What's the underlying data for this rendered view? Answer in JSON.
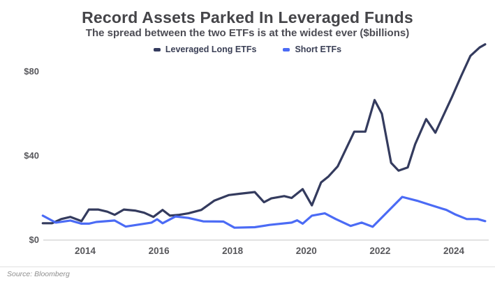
{
  "header": {
    "title": "Record Assets Parked In Leveraged Funds",
    "subtitle": "The spread between the two ETFs is at the widest ever ($billions)"
  },
  "legend": [
    {
      "label": "Leveraged Long ETFs",
      "color": "#343b5e"
    },
    {
      "label": "Short ETFs",
      "color": "#4b6bf5"
    }
  ],
  "footer": {
    "source": "Source: Bloomberg"
  },
  "colors": {
    "leveraged_long_line": "#343b5e",
    "short_etfs_line": "#4b6bf5",
    "baseline": "#d9d9d9",
    "axis_text": "#58585c",
    "title_text": "#454549"
  },
  "chart_data": {
    "type": "line",
    "title": "Record Assets Parked In Leveraged Funds",
    "subtitle": "The spread between the two ETFs is at the widest ever ($billions)",
    "unit": "$billions",
    "grid": false,
    "legend_position": "top",
    "x_range": [
      2012.85,
      2024.85
    ],
    "ylim": [
      0,
      95
    ],
    "x_ticks": [
      {
        "label": "2014",
        "year": 2014
      },
      {
        "label": "2016",
        "year": 2016
      },
      {
        "label": "2018",
        "year": 2018
      },
      {
        "label": "2020",
        "year": 2020
      },
      {
        "label": "2022",
        "year": 2022
      },
      {
        "label": "2024",
        "year": 2024
      }
    ],
    "y_ticks": [
      {
        "label": "$0",
        "value": 0
      },
      {
        "label": "$40",
        "value": 40
      },
      {
        "label": "$80",
        "value": 80
      }
    ],
    "series": [
      {
        "name": "Leveraged Long ETFs",
        "color": "#343b5e",
        "points": [
          [
            2012.85,
            8
          ],
          [
            2013.1,
            8
          ],
          [
            2013.35,
            10
          ],
          [
            2013.6,
            11
          ],
          [
            2013.9,
            9
          ],
          [
            2014.1,
            14.5
          ],
          [
            2014.35,
            14.5
          ],
          [
            2014.6,
            13.5
          ],
          [
            2014.8,
            12
          ],
          [
            2015.05,
            14.5
          ],
          [
            2015.35,
            14
          ],
          [
            2015.6,
            13
          ],
          [
            2015.85,
            11
          ],
          [
            2016.1,
            14.3
          ],
          [
            2016.3,
            11.6
          ],
          [
            2016.55,
            12
          ],
          [
            2016.8,
            12.7
          ],
          [
            2017.15,
            14.3
          ],
          [
            2017.5,
            18.7
          ],
          [
            2017.9,
            21.4
          ],
          [
            2018.2,
            22
          ],
          [
            2018.6,
            22.8
          ],
          [
            2018.85,
            18
          ],
          [
            2019.05,
            19.8
          ],
          [
            2019.4,
            20.9
          ],
          [
            2019.6,
            20
          ],
          [
            2019.9,
            24.2
          ],
          [
            2020.15,
            16.5
          ],
          [
            2020.4,
            27.4
          ],
          [
            2020.6,
            30.2
          ],
          [
            2020.85,
            35
          ],
          [
            2021.3,
            51.5
          ],
          [
            2021.6,
            51.5
          ],
          [
            2021.85,
            66.5
          ],
          [
            2022.05,
            60
          ],
          [
            2022.3,
            36.7
          ],
          [
            2022.5,
            33
          ],
          [
            2022.75,
            34.5
          ],
          [
            2022.95,
            45.5
          ],
          [
            2023.25,
            57.5
          ],
          [
            2023.5,
            51
          ],
          [
            2023.95,
            68
          ],
          [
            2024.2,
            78
          ],
          [
            2024.45,
            87.5
          ],
          [
            2024.7,
            91.5
          ],
          [
            2024.85,
            93
          ]
        ]
      },
      {
        "name": "Short ETFs",
        "color": "#4b6bf5",
        "points": [
          [
            2012.85,
            11.6
          ],
          [
            2013.2,
            8.3
          ],
          [
            2013.6,
            9.3
          ],
          [
            2013.9,
            7.8
          ],
          [
            2014.1,
            7.8
          ],
          [
            2014.3,
            8.6
          ],
          [
            2014.8,
            9.3
          ],
          [
            2015.1,
            6.4
          ],
          [
            2015.8,
            8.3
          ],
          [
            2015.95,
            9.9
          ],
          [
            2016.1,
            8
          ],
          [
            2016.45,
            11.2
          ],
          [
            2016.8,
            10.5
          ],
          [
            2017.2,
            8.9
          ],
          [
            2017.75,
            8.8
          ],
          [
            2018.05,
            5.9
          ],
          [
            2018.6,
            6.1
          ],
          [
            2019.0,
            7.2
          ],
          [
            2019.6,
            8.3
          ],
          [
            2019.75,
            9.4
          ],
          [
            2019.9,
            7.8
          ],
          [
            2020.15,
            11.6
          ],
          [
            2020.5,
            12.7
          ],
          [
            2020.8,
            10
          ],
          [
            2021.2,
            6.7
          ],
          [
            2021.5,
            8.3
          ],
          [
            2021.8,
            6.3
          ],
          [
            2022.25,
            14.3
          ],
          [
            2022.6,
            20.5
          ],
          [
            2023.0,
            18.7
          ],
          [
            2023.4,
            16.5
          ],
          [
            2023.8,
            14.3
          ],
          [
            2024.05,
            12.1
          ],
          [
            2024.35,
            10
          ],
          [
            2024.65,
            10
          ],
          [
            2024.85,
            9
          ]
        ]
      }
    ]
  }
}
